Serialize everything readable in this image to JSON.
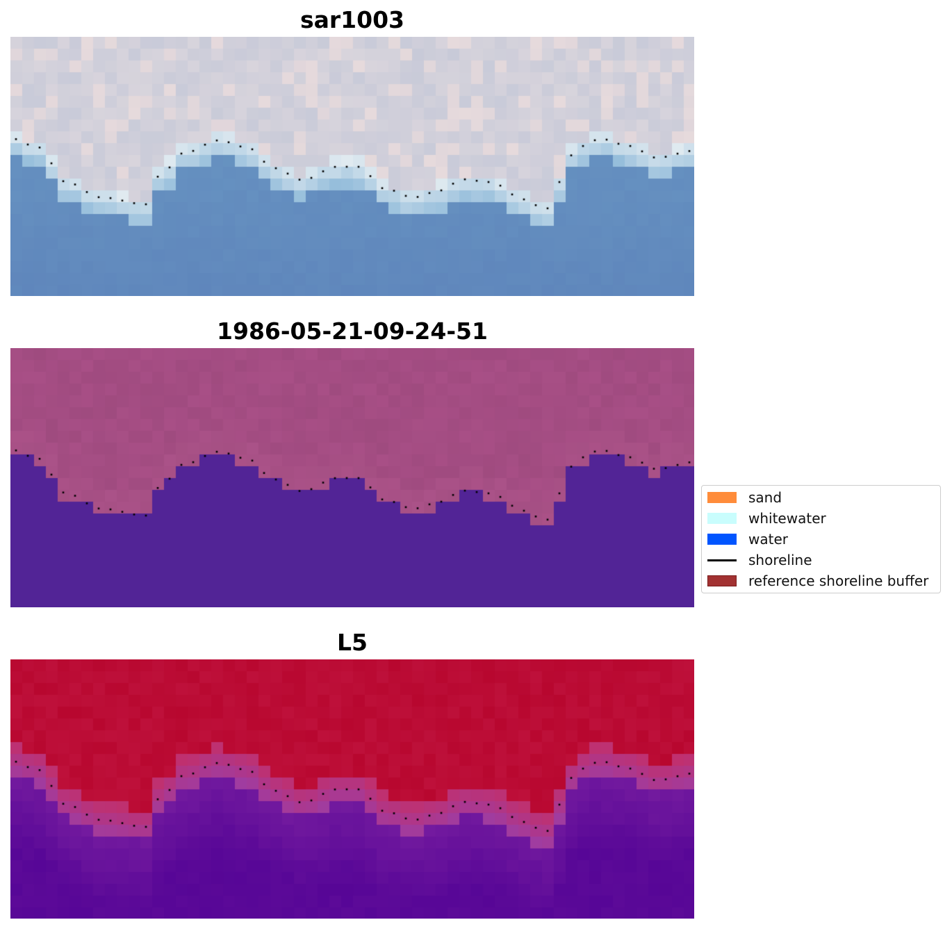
{
  "panels": [
    {
      "title": "sar1003",
      "style": "sar"
    },
    {
      "title": "1986-05-21-09-24-51",
      "style": "classified"
    },
    {
      "title": "L5",
      "style": "index"
    }
  ],
  "legend": {
    "items": [
      {
        "label": "sand",
        "color": "#ff8c3a",
        "kind": "patch"
      },
      {
        "label": "whitewater",
        "color": "#c9fdfd",
        "kind": "patch"
      },
      {
        "label": "water",
        "color": "#0055ff",
        "kind": "patch"
      },
      {
        "label": "shoreline",
        "color": "#000000",
        "kind": "line"
      },
      {
        "label": "reference shoreline buffer",
        "color": "#a23232",
        "kind": "patch"
      }
    ]
  },
  "colors": {
    "shoreline_dots": "#000000",
    "classified_water": "#522496",
    "classified_land": "#a84f86",
    "index_high": "#b8072f",
    "index_low": "#5c0a98",
    "sar_light": "#d8d4dc",
    "sar_water": "#6c9ac4"
  }
}
